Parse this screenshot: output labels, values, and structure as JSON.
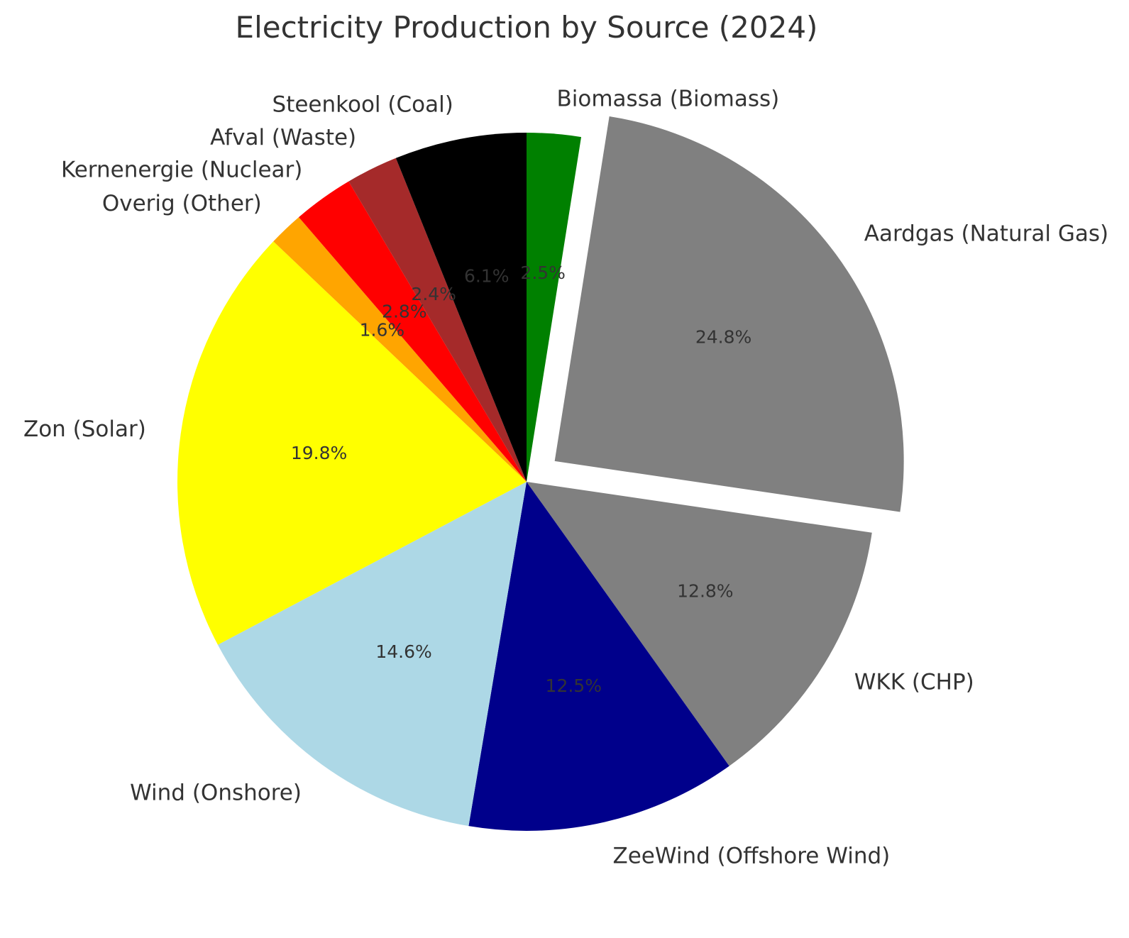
{
  "chart_data": {
    "type": "pie",
    "title": "Electricity Production by Source (2024)",
    "start_angle_deg": 90,
    "direction": "clockwise",
    "slices": [
      {
        "label": "Biomassa (Biomass)",
        "value": 2.5,
        "display": "2.5%",
        "color": "#008000",
        "exploded": false
      },
      {
        "label": "Aardgas (Natural Gas)",
        "value": 24.8,
        "display": "24.8%",
        "color": "#808080",
        "exploded": true
      },
      {
        "label": "WKK (CHP)",
        "value": 12.8,
        "display": "12.8%",
        "color": "#808080",
        "exploded": false
      },
      {
        "label": "ZeeWind (Offshore Wind)",
        "value": 12.5,
        "display": "12.5%",
        "color": "#00008B",
        "exploded": false
      },
      {
        "label": "Wind (Onshore)",
        "value": 14.6,
        "display": "14.6%",
        "color": "#ADD8E6",
        "exploded": false
      },
      {
        "label": "Zon (Solar)",
        "value": 19.8,
        "display": "19.8%",
        "color": "#FFFF00",
        "exploded": false
      },
      {
        "label": "Overig (Other)",
        "value": 1.6,
        "display": "1.6%",
        "color": "#FFA500",
        "exploded": false
      },
      {
        "label": "Kernenergie (Nuclear)",
        "value": 2.8,
        "display": "2.8%",
        "color": "#FF0000",
        "exploded": false
      },
      {
        "label": "Afval (Waste)",
        "value": 2.4,
        "display": "2.4%",
        "color": "#A52A2A",
        "exploded": false
      },
      {
        "label": "Steenkool (Coal)",
        "value": 6.1,
        "display": "6.1%",
        "color": "#000000",
        "exploded": false
      }
    ]
  }
}
